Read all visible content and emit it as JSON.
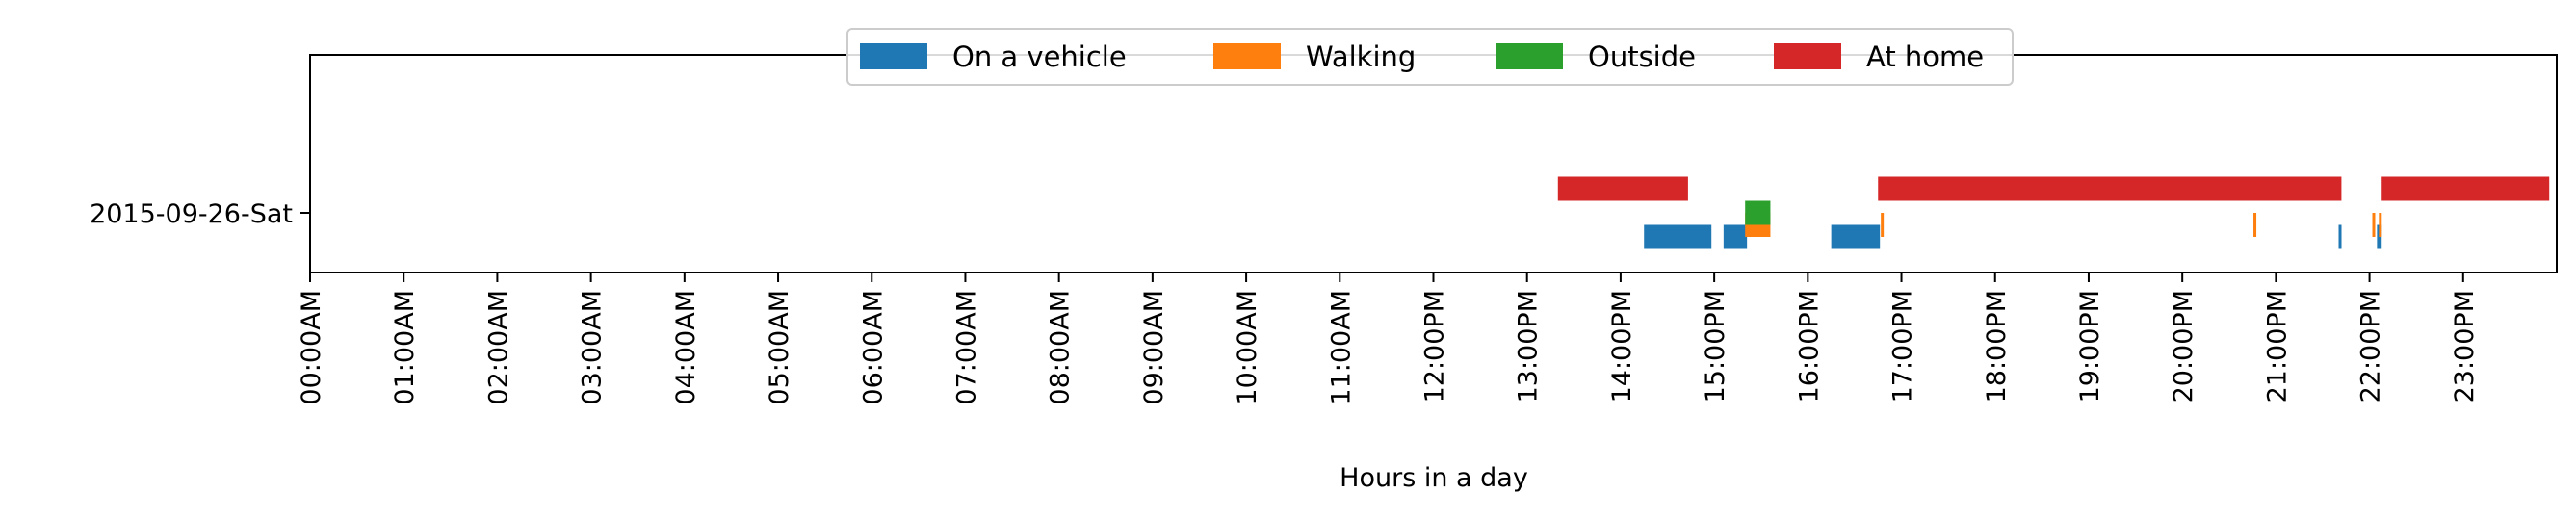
{
  "chart_data": {
    "type": "timeline",
    "title": "",
    "xlabel": "Hours in a day",
    "ylabel": "",
    "xlim": [
      0,
      24
    ],
    "x_ticks": [
      0,
      1,
      2,
      3,
      4,
      5,
      6,
      7,
      8,
      9,
      10,
      11,
      12,
      13,
      14,
      15,
      16,
      17,
      18,
      19,
      20,
      21,
      22,
      23
    ],
    "x_tick_labels": [
      "00:00AM",
      "01:00AM",
      "02:00AM",
      "03:00AM",
      "04:00AM",
      "05:00AM",
      "06:00AM",
      "07:00AM",
      "08:00AM",
      "09:00AM",
      "10:00AM",
      "11:00AM",
      "12:00PM",
      "13:00PM",
      "14:00PM",
      "15:00PM",
      "16:00PM",
      "17:00PM",
      "18:00PM",
      "19:00PM",
      "20:00PM",
      "21:00PM",
      "22:00PM",
      "23:00PM"
    ],
    "categories": [
      "2015-09-26-Sat"
    ],
    "grid": false,
    "legend_position": "top-center",
    "series": [
      {
        "name": "On a vehicle",
        "color": "#1f77b4",
        "lane": -1,
        "segments": [
          [
            14.25,
            14.97
          ],
          [
            15.1,
            15.35
          ],
          [
            16.25,
            16.77
          ],
          [
            21.67,
            21.7
          ],
          [
            22.08,
            22.13
          ]
        ]
      },
      {
        "name": "Walking",
        "color": "#ff7f0e",
        "lane": -0.5,
        "segments": [
          [
            15.33,
            15.6
          ],
          [
            16.78,
            16.81
          ],
          [
            20.76,
            20.79
          ],
          [
            22.03,
            22.06
          ],
          [
            22.1,
            22.13
          ]
        ]
      },
      {
        "name": "Outside",
        "color": "#2ca02c",
        "lane": 0,
        "segments": [
          [
            15.33,
            15.6
          ]
        ]
      },
      {
        "name": "At home",
        "color": "#d62728",
        "lane": 1,
        "segments": [
          [
            13.33,
            14.72
          ],
          [
            16.75,
            21.7
          ],
          [
            22.13,
            23.92
          ]
        ]
      }
    ]
  }
}
